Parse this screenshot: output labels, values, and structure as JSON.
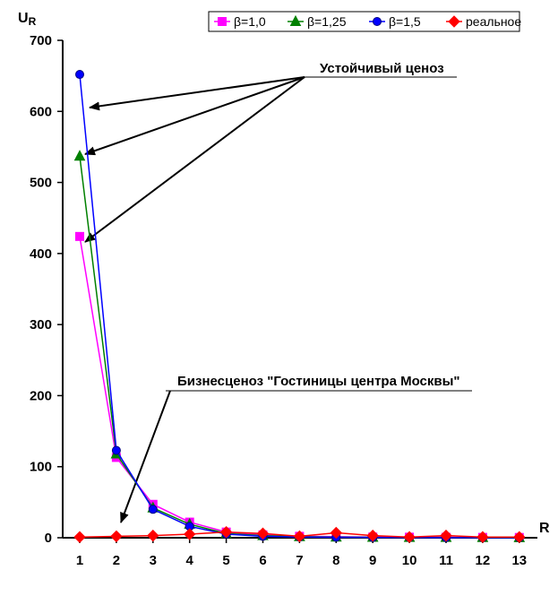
{
  "chart_data": {
    "type": "line",
    "ylabel_main": "U",
    "ylabel_sub": "R",
    "xlabel": "R",
    "ylim": [
      0,
      700
    ],
    "y_ticks": [
      0,
      100,
      200,
      300,
      400,
      500,
      600,
      700
    ],
    "categories": [
      1,
      2,
      3,
      4,
      5,
      6,
      7,
      8,
      9,
      10,
      11,
      12,
      13
    ],
    "grid": false,
    "legend_position": "top-right",
    "series": [
      {
        "name": "β=1,0",
        "color": "#ff00ff",
        "marker": "square",
        "values": [
          424,
          113,
          47,
          22,
          8,
          4,
          2,
          1.5,
          1,
          0.8,
          0.6,
          0.5,
          0.4
        ]
      },
      {
        "name": "β=1,25",
        "color": "#008000",
        "marker": "triangle",
        "values": [
          537,
          118,
          42,
          19,
          6,
          3,
          1.5,
          1,
          0.7,
          0.5,
          0.4,
          0.3,
          0.2
        ]
      },
      {
        "name": "β=1,5",
        "color": "#0000ff",
        "marker": "circle",
        "values": [
          652,
          123,
          40,
          16,
          5,
          2,
          1,
          0.6,
          0.4,
          0.3,
          0.2,
          0.15,
          0.1
        ]
      },
      {
        "name": "реальное",
        "color": "#ff0000",
        "marker": "diamond",
        "values": [
          1,
          2,
          3,
          5,
          8,
          6,
          2,
          7,
          3,
          1,
          3,
          1,
          1
        ]
      }
    ],
    "annotations": [
      {
        "text": "Устойчивый ценоз",
        "targets": [
          [
            1,
            607
          ],
          [
            1,
            537
          ],
          [
            1,
            420
          ]
        ]
      },
      {
        "text": "Бизнесценоз \"Гостиницы центра Москвы\"",
        "targets": [
          [
            2,
            20
          ]
        ]
      }
    ]
  }
}
